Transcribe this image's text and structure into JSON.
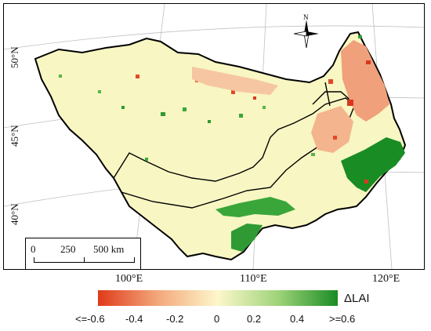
{
  "map": {
    "lat_labels": [
      "50°N",
      "45°N",
      "40°N"
    ],
    "lon_labels": [
      "100°E",
      "110°E",
      "120°E"
    ],
    "north_label": "N"
  },
  "scale_bar": {
    "labels": [
      "0",
      "250",
      "500 km"
    ]
  },
  "legend": {
    "title": "ΔLAI",
    "tick_labels": [
      "<=-0.6",
      "-0.4",
      "-0.2",
      "0",
      "0.2",
      "0.4",
      ">=0.6"
    ],
    "colors": [
      "#e03a1a",
      "#f3a87c",
      "#fdf7cb",
      "#9fd47a",
      "#1a8c24"
    ],
    "fill_color": "#f8f6c2",
    "outside_fill": "#ffffff",
    "border_color": "#000000",
    "gridline_color": "#c0c0c0"
  }
}
